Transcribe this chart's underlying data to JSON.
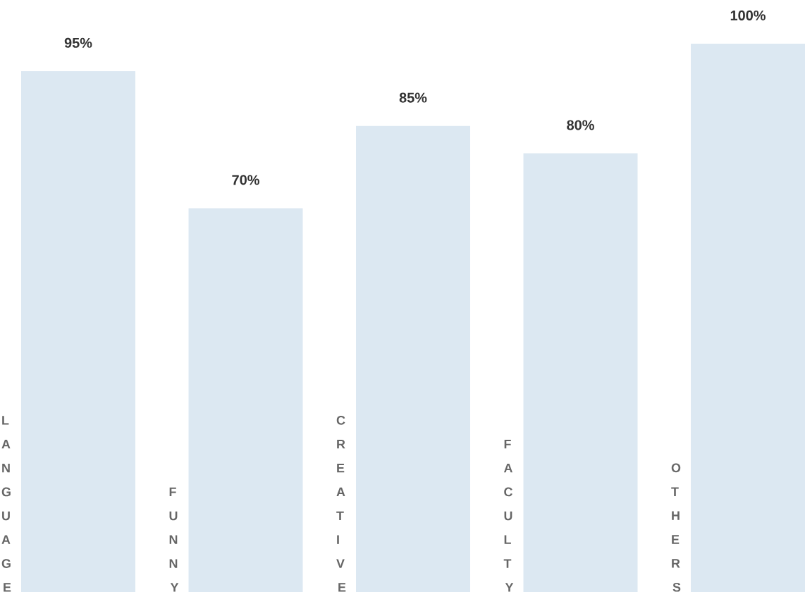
{
  "chart_data": {
    "type": "bar",
    "categories": [
      "LANGUAGE",
      "FUNNY",
      "CREATIVE",
      "FACULTY",
      "OTHERS"
    ],
    "values": [
      95,
      70,
      85,
      80,
      100
    ],
    "value_labels": [
      "95%",
      "70%",
      "85%",
      "80%",
      "100%"
    ],
    "color": "#dce8f2"
  }
}
